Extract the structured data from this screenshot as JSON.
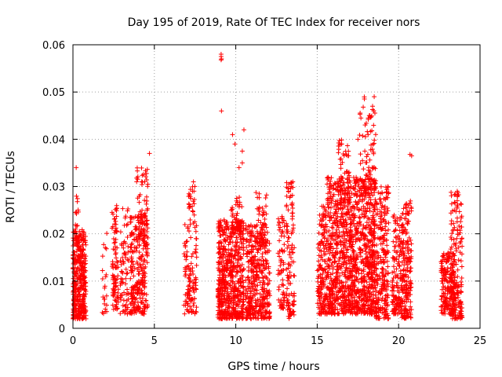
{
  "chart_data": {
    "type": "scatter",
    "title": "Day 195 of 2019, Rate Of TEC Index for receiver nors",
    "xlabel": "GPS time / hours",
    "ylabel": "ROTI / TECUs",
    "xlim": [
      0,
      25
    ],
    "ylim": [
      0,
      0.06
    ],
    "xticks": [
      0,
      5,
      10,
      15,
      20,
      25
    ],
    "xtick_labels": [
      "0",
      "5",
      "10",
      "15",
      "20",
      "25"
    ],
    "yticks": [
      0,
      0.01,
      0.02,
      0.03,
      0.04,
      0.05,
      0.06
    ],
    "ytick_labels": [
      "0",
      "0.01",
      "0.02",
      "0.03",
      "0.04",
      "0.05",
      "0.06"
    ],
    "grid": true,
    "marker": "+",
    "color": "#ff0000",
    "series": [
      {
        "name": "ROTI",
        "clusters": [
          {
            "x": [
              0.0,
              0.8
            ],
            "y": [
              0.002,
              0.021
            ],
            "density": 380
          },
          {
            "x": [
              0.15,
              0.35
            ],
            "y": [
              0.018,
              0.028
            ],
            "density": 18
          },
          {
            "x": [
              1.8,
              2.1
            ],
            "y": [
              0.003,
              0.021
            ],
            "density": 22
          },
          {
            "x": [
              2.4,
              2.8
            ],
            "y": [
              0.004,
              0.026
            ],
            "density": 90
          },
          {
            "x": [
              2.9,
              3.4
            ],
            "y": [
              0.003,
              0.026
            ],
            "density": 70
          },
          {
            "x": [
              3.5,
              4.6
            ],
            "y": [
              0.003,
              0.024
            ],
            "density": 260
          },
          {
            "x": [
              3.9,
              4.6
            ],
            "y": [
              0.018,
              0.034
            ],
            "density": 70
          },
          {
            "x": [
              6.8,
              7.6
            ],
            "y": [
              0.003,
              0.022
            ],
            "density": 110
          },
          {
            "x": [
              7.1,
              7.5
            ],
            "y": [
              0.022,
              0.031
            ],
            "density": 25
          },
          {
            "x": [
              8.9,
              9.6
            ],
            "y": [
              0.002,
              0.023
            ],
            "density": 280
          },
          {
            "x": [
              9.6,
              10.5
            ],
            "y": [
              0.002,
              0.023
            ],
            "density": 320
          },
          {
            "x": [
              9.7,
              10.4
            ],
            "y": [
              0.02,
              0.028
            ],
            "density": 40
          },
          {
            "x": [
              10.6,
              12.1
            ],
            "y": [
              0.002,
              0.022
            ],
            "density": 380
          },
          {
            "x": [
              11.2,
              11.9
            ],
            "y": [
              0.018,
              0.029
            ],
            "density": 50
          },
          {
            "x": [
              12.6,
              13.0
            ],
            "y": [
              0.004,
              0.024
            ],
            "density": 70
          },
          {
            "x": [
              13.1,
              13.6
            ],
            "y": [
              0.002,
              0.031
            ],
            "density": 110
          },
          {
            "x": [
              15.0,
              15.6
            ],
            "y": [
              0.003,
              0.026
            ],
            "density": 160
          },
          {
            "x": [
              15.6,
              17.2
            ],
            "y": [
              0.003,
              0.032
            ],
            "density": 620
          },
          {
            "x": [
              16.3,
              17.0
            ],
            "y": [
              0.026,
              0.04
            ],
            "density": 60
          },
          {
            "x": [
              17.2,
              18.6
            ],
            "y": [
              0.003,
              0.032
            ],
            "density": 560
          },
          {
            "x": [
              17.6,
              18.6
            ],
            "y": [
              0.028,
              0.049
            ],
            "density": 90
          },
          {
            "x": [
              18.6,
              19.4
            ],
            "y": [
              0.002,
              0.03
            ],
            "density": 240
          },
          {
            "x": [
              19.6,
              20.2
            ],
            "y": [
              0.003,
              0.024
            ],
            "density": 140
          },
          {
            "x": [
              20.2,
              20.8
            ],
            "y": [
              0.002,
              0.027
            ],
            "density": 190
          },
          {
            "x": [
              22.6,
              23.4
            ],
            "y": [
              0.003,
              0.016
            ],
            "density": 170
          },
          {
            "x": [
              23.2,
              23.9
            ],
            "y": [
              0.002,
              0.029
            ],
            "density": 190
          }
        ],
        "points": [
          [
            0.2,
            0.034
          ],
          [
            9.1,
            0.058
          ],
          [
            9.1,
            0.0575
          ],
          [
            9.12,
            0.057
          ],
          [
            9.1,
            0.0568
          ],
          [
            9.12,
            0.046
          ],
          [
            9.8,
            0.041
          ],
          [
            10.5,
            0.042
          ],
          [
            10.4,
            0.0375
          ],
          [
            10.4,
            0.035
          ],
          [
            4.7,
            0.037
          ],
          [
            4.6,
            0.0305
          ],
          [
            18.4,
            0.047
          ],
          [
            18.5,
            0.049
          ],
          [
            18.2,
            0.045
          ],
          [
            20.7,
            0.0368
          ],
          [
            20.8,
            0.0365
          ],
          [
            13.5,
            0.031
          ],
          [
            17.5,
            0.04
          ],
          [
            16.5,
            0.039
          ],
          [
            9.95,
            0.039
          ],
          [
            10.2,
            0.034
          ],
          [
            13.4,
            0.03
          ],
          [
            7.4,
            0.031
          ],
          [
            23.6,
            0.029
          ]
        ]
      }
    ]
  }
}
